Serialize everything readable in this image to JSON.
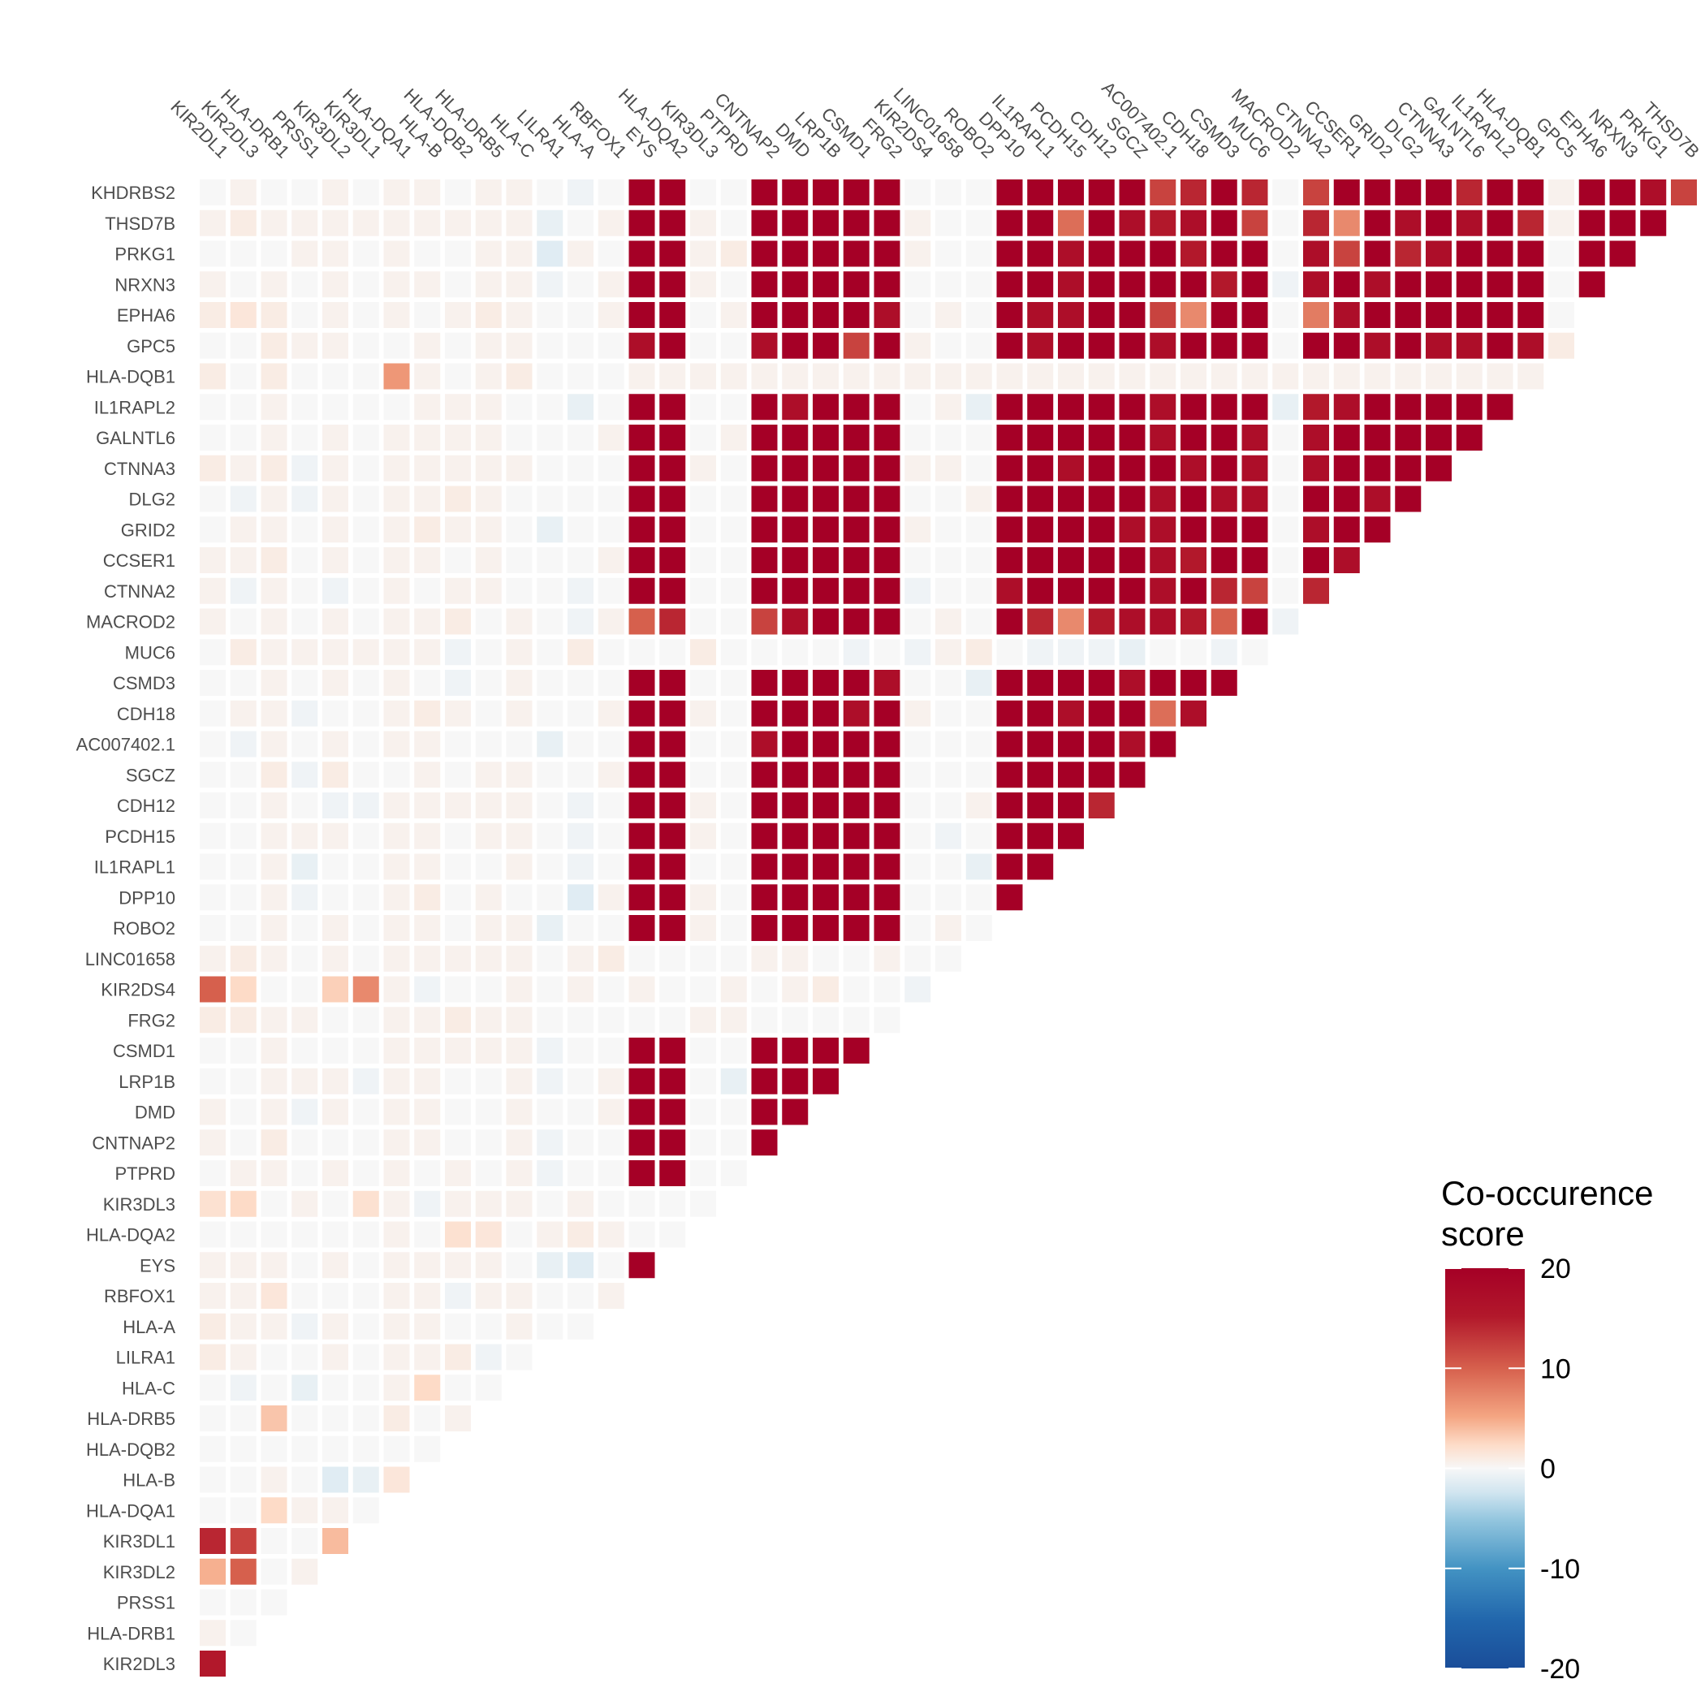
{
  "chart_data": {
    "type": "heatmap",
    "title": "",
    "xlabel": "",
    "ylabel": "",
    "x_labels": [
      "KIR2DL1",
      "KIR2DL3",
      "HLA-DRB1",
      "PRSS1",
      "KIR3DL2",
      "KIR3DL1",
      "HLA-DQA1",
      "HLA-B",
      "HLA-DQB2",
      "HLA-DRB5",
      "HLA-C",
      "LILRA1",
      "HLA-A",
      "RBFOX1",
      "EYS",
      "HLA-DQA2",
      "KIR3DL3",
      "PTPRD",
      "CNTNAP2",
      "DMD",
      "LRP1B",
      "CSMD1",
      "FRG2",
      "KIR2DS4",
      "LINC01658",
      "ROBO2",
      "DPP10",
      "IL1RAPL1",
      "PCDH15",
      "CDH12",
      "SGCZ",
      "AC007402.1",
      "CDH18",
      "CSMD3",
      "MUC6",
      "MACROD2",
      "CTNNA2",
      "CCSER1",
      "GRID2",
      "DLG2",
      "CTNNA3",
      "GALNTL6",
      "IL1RAPL2",
      "HLA-DQB1",
      "GPC5",
      "EPHA6",
      "NRXN3",
      "PRKG1",
      "THSD7B"
    ],
    "y_labels": [
      "KHDRBS2",
      "THSD7B",
      "PRKG1",
      "NRXN3",
      "EPHA6",
      "GPC5",
      "HLA-DQB1",
      "IL1RAPL2",
      "GALNTL6",
      "CTNNA3",
      "DLG2",
      "GRID2",
      "CCSER1",
      "CTNNA2",
      "MACROD2",
      "MUC6",
      "CSMD3",
      "CDH18",
      "AC007402.1",
      "SGCZ",
      "CDH12",
      "PCDH15",
      "IL1RAPL1",
      "DPP10",
      "ROBO2",
      "LINC01658",
      "KIR2DS4",
      "FRG2",
      "CSMD1",
      "LRP1B",
      "DMD",
      "CNTNAP2",
      "PTPRD",
      "KIR3DL3",
      "HLA-DQA2",
      "EYS",
      "RBFOX1",
      "HLA-A",
      "LILRA1",
      "HLA-C",
      "HLA-DRB5",
      "HLA-DQB2",
      "HLA-B",
      "HLA-DQA1",
      "KIR3DL1",
      "KIR3DL2",
      "PRSS1",
      "HLA-DRB1",
      "KIR2DL3"
    ],
    "note_layout": "lower-triangular; row i (from top) has 49 - i cells, cell j corresponds to x_labels[j]",
    "values": [
      [
        0,
        1,
        0,
        0,
        1,
        0,
        1,
        1,
        0,
        1,
        1,
        0,
        -1,
        0,
        25,
        25,
        0,
        0,
        25,
        25,
        25,
        25,
        25,
        0,
        0,
        0,
        25,
        25,
        25,
        25,
        25,
        17,
        19,
        25,
        19,
        0,
        17,
        25,
        25,
        25,
        25,
        19,
        25,
        25,
        1,
        25,
        25,
        22,
        17
      ],
      [
        1,
        2,
        1,
        1,
        1,
        1,
        1,
        1,
        1,
        1,
        1,
        -2,
        0,
        1,
        25,
        25,
        1,
        0,
        25,
        25,
        25,
        25,
        25,
        1,
        0,
        0,
        25,
        25,
        14,
        25,
        22,
        20,
        22,
        25,
        17,
        0,
        19,
        12,
        25,
        22,
        25,
        22,
        25,
        19,
        1,
        25,
        25,
        25
      ],
      [
        0,
        0,
        0,
        1,
        1,
        0,
        1,
        0,
        0,
        1,
        1,
        -3,
        1,
        0,
        25,
        25,
        1,
        2,
        25,
        25,
        25,
        25,
        25,
        1,
        0,
        0,
        25,
        25,
        22,
        25,
        25,
        25,
        20,
        25,
        25,
        0,
        22,
        17,
        25,
        19,
        22,
        25,
        25,
        25,
        0,
        25,
        25
      ],
      [
        1,
        0,
        1,
        0,
        1,
        0,
        1,
        1,
        0,
        1,
        1,
        -1,
        0,
        1,
        25,
        25,
        1,
        0,
        25,
        25,
        25,
        25,
        25,
        0,
        0,
        0,
        25,
        25,
        22,
        25,
        25,
        25,
        25,
        20,
        25,
        -1,
        22,
        25,
        22,
        25,
        25,
        25,
        25,
        25,
        0,
        25
      ],
      [
        2,
        3,
        2,
        0,
        1,
        0,
        1,
        0,
        1,
        2,
        1,
        0,
        0,
        1,
        25,
        25,
        0,
        1,
        25,
        25,
        25,
        25,
        22,
        0,
        1,
        0,
        25,
        22,
        22,
        25,
        25,
        17,
        12,
        25,
        25,
        0,
        13,
        22,
        25,
        25,
        25,
        25,
        25,
        25,
        0
      ],
      [
        0,
        0,
        2,
        1,
        1,
        0,
        0,
        1,
        0,
        1,
        1,
        0,
        0,
        0,
        22,
        25,
        0,
        0,
        22,
        25,
        25,
        17,
        25,
        1,
        0,
        0,
        25,
        22,
        25,
        25,
        25,
        22,
        25,
        25,
        25,
        0,
        25,
        25,
        22,
        25,
        22,
        22,
        25,
        22,
        2
      ],
      [
        2,
        0,
        2,
        0,
        0,
        0,
        11,
        1,
        0,
        1,
        2,
        0,
        0,
        0,
        1,
        1,
        1,
        1,
        1,
        1,
        1,
        1,
        1,
        1,
        1,
        1,
        1,
        1,
        1,
        1,
        1,
        1,
        1,
        1,
        1,
        1,
        1,
        1,
        1,
        1,
        1,
        1,
        1,
        1
      ],
      [
        0,
        0,
        1,
        0,
        0,
        0,
        0,
        1,
        1,
        1,
        0,
        0,
        -2,
        0,
        25,
        25,
        0,
        0,
        25,
        22,
        25,
        25,
        25,
        0,
        1,
        -2,
        25,
        25,
        25,
        25,
        25,
        22,
        25,
        25,
        25,
        -2,
        20,
        22,
        25,
        25,
        25,
        25,
        25
      ],
      [
        0,
        0,
        1,
        0,
        1,
        0,
        1,
        1,
        1,
        1,
        0,
        0,
        0,
        1,
        25,
        25,
        0,
        1,
        25,
        25,
        25,
        25,
        25,
        0,
        0,
        0,
        25,
        25,
        25,
        25,
        25,
        22,
        25,
        25,
        22,
        0,
        22,
        25,
        25,
        25,
        25,
        25
      ],
      [
        2,
        1,
        2,
        -1,
        1,
        0,
        1,
        1,
        1,
        1,
        1,
        0,
        0,
        0,
        25,
        25,
        1,
        0,
        25,
        25,
        25,
        25,
        25,
        1,
        1,
        0,
        25,
        25,
        22,
        25,
        25,
        25,
        22,
        25,
        22,
        0,
        22,
        25,
        25,
        25,
        25
      ],
      [
        0,
        -1,
        1,
        -1,
        1,
        0,
        1,
        1,
        2,
        1,
        0,
        0,
        0,
        0,
        25,
        25,
        0,
        0,
        25,
        25,
        25,
        25,
        25,
        0,
        0,
        1,
        25,
        25,
        25,
        25,
        25,
        22,
        25,
        22,
        22,
        0,
        25,
        25,
        22,
        25
      ],
      [
        0,
        1,
        1,
        0,
        1,
        0,
        1,
        2,
        1,
        1,
        0,
        -2,
        0,
        0,
        25,
        25,
        0,
        0,
        25,
        25,
        25,
        25,
        25,
        1,
        0,
        0,
        25,
        25,
        25,
        25,
        22,
        22,
        25,
        25,
        25,
        0,
        22,
        25,
        25
      ],
      [
        1,
        1,
        2,
        0,
        1,
        0,
        1,
        1,
        0,
        1,
        0,
        0,
        0,
        1,
        25,
        25,
        0,
        0,
        25,
        25,
        25,
        25,
        25,
        0,
        0,
        0,
        25,
        25,
        25,
        25,
        25,
        22,
        20,
        25,
        25,
        0,
        25,
        22
      ],
      [
        1,
        -1,
        1,
        0,
        -1,
        0,
        1,
        0,
        1,
        1,
        0,
        0,
        -1,
        0,
        25,
        25,
        0,
        0,
        25,
        25,
        25,
        25,
        25,
        -1,
        0,
        0,
        22,
        25,
        25,
        25,
        25,
        22,
        25,
        19,
        17,
        0,
        19
      ],
      [
        1,
        0,
        1,
        0,
        1,
        0,
        1,
        1,
        2,
        0,
        1,
        0,
        -1,
        1,
        15,
        19,
        0,
        0,
        17,
        22,
        25,
        25,
        25,
        0,
        1,
        0,
        25,
        19,
        12,
        20,
        22,
        22,
        20,
        15,
        25,
        -1
      ],
      [
        0,
        2,
        1,
        1,
        1,
        1,
        1,
        1,
        -1,
        0,
        1,
        0,
        2,
        0,
        0,
        0,
        2,
        0,
        0,
        0,
        0,
        -1,
        0,
        -1,
        1,
        2,
        0,
        -1,
        -1,
        -1,
        -2,
        0,
        0,
        -1,
        0
      ],
      [
        0,
        0,
        1,
        0,
        1,
        0,
        1,
        0,
        -1,
        0,
        1,
        0,
        0,
        0,
        25,
        25,
        0,
        0,
        25,
        25,
        25,
        25,
        22,
        0,
        0,
        -2,
        25,
        25,
        25,
        25,
        22,
        25,
        25,
        25
      ],
      [
        0,
        1,
        1,
        -1,
        0,
        0,
        1,
        2,
        1,
        0,
        1,
        0,
        0,
        1,
        25,
        25,
        1,
        0,
        25,
        25,
        25,
        22,
        25,
        1,
        0,
        0,
        25,
        25,
        22,
        25,
        25,
        14,
        22
      ],
      [
        0,
        -1,
        1,
        0,
        1,
        0,
        1,
        1,
        0,
        0,
        0,
        -2,
        0,
        0,
        25,
        25,
        0,
        0,
        22,
        25,
        25,
        25,
        25,
        0,
        0,
        0,
        25,
        25,
        25,
        25,
        22,
        25
      ],
      [
        0,
        0,
        2,
        -1,
        2,
        0,
        0,
        1,
        0,
        1,
        1,
        0,
        0,
        1,
        25,
        25,
        0,
        0,
        25,
        25,
        25,
        25,
        25,
        0,
        0,
        0,
        25,
        25,
        25,
        25,
        25
      ],
      [
        0,
        0,
        1,
        0,
        -1,
        -1,
        1,
        1,
        1,
        1,
        1,
        0,
        -1,
        0,
        25,
        25,
        1,
        0,
        25,
        25,
        25,
        25,
        25,
        0,
        0,
        1,
        25,
        25,
        25,
        19
      ],
      [
        0,
        0,
        1,
        1,
        1,
        0,
        1,
        1,
        0,
        1,
        1,
        0,
        -1,
        0,
        25,
        25,
        1,
        0,
        25,
        25,
        25,
        25,
        25,
        0,
        -1,
        0,
        25,
        25,
        25
      ],
      [
        0,
        0,
        1,
        -2,
        0,
        0,
        1,
        1,
        0,
        0,
        1,
        0,
        -1,
        0,
        25,
        25,
        0,
        0,
        25,
        25,
        25,
        25,
        25,
        0,
        0,
        -2,
        25,
        25
      ],
      [
        0,
        0,
        1,
        -1,
        0,
        0,
        1,
        2,
        0,
        1,
        0,
        0,
        -3,
        1,
        25,
        25,
        1,
        0,
        25,
        25,
        25,
        25,
        25,
        0,
        0,
        0,
        25
      ],
      [
        0,
        0,
        1,
        0,
        1,
        0,
        1,
        1,
        0,
        1,
        1,
        -2,
        0,
        0,
        25,
        25,
        1,
        0,
        25,
        25,
        25,
        25,
        25,
        0,
        1,
        0
      ],
      [
        1,
        2,
        1,
        0,
        1,
        0,
        1,
        1,
        1,
        1,
        1,
        0,
        1,
        2,
        0,
        0,
        0,
        0,
        1,
        1,
        0,
        0,
        1,
        0,
        0
      ],
      [
        15,
        5,
        0,
        0,
        6,
        12,
        1,
        -1,
        0,
        0,
        1,
        0,
        1,
        0,
        1,
        0,
        0,
        1,
        0,
        1,
        2,
        0,
        0,
        -1
      ],
      [
        2,
        2,
        1,
        1,
        0,
        0,
        1,
        1,
        2,
        1,
        1,
        0,
        0,
        0,
        0,
        0,
        1,
        1,
        0,
        0,
        0,
        0,
        0
      ],
      [
        0,
        0,
        1,
        0,
        0,
        0,
        1,
        1,
        1,
        1,
        1,
        -1,
        0,
        0,
        25,
        25,
        0,
        0,
        25,
        25,
        25,
        25
      ],
      [
        0,
        0,
        1,
        1,
        1,
        -1,
        1,
        1,
        0,
        0,
        1,
        -1,
        0,
        1,
        25,
        25,
        0,
        -2,
        25,
        25,
        25
      ],
      [
        1,
        0,
        1,
        -1,
        1,
        0,
        1,
        1,
        0,
        0,
        1,
        0,
        0,
        1,
        25,
        25,
        0,
        0,
        25,
        25
      ],
      [
        1,
        0,
        2,
        0,
        0,
        0,
        1,
        1,
        0,
        0,
        1,
        -1,
        0,
        0,
        25,
        25,
        0,
        0,
        25
      ],
      [
        0,
        1,
        1,
        0,
        1,
        0,
        1,
        0,
        1,
        0,
        1,
        -1,
        0,
        0,
        25,
        25,
        0,
        0
      ],
      [
        4,
        5,
        0,
        1,
        0,
        4,
        1,
        -1,
        1,
        1,
        1,
        0,
        1,
        0,
        0,
        0,
        0
      ],
      [
        0,
        0,
        0,
        0,
        0,
        0,
        1,
        0,
        4,
        3,
        0,
        1,
        2,
        1,
        0,
        0
      ],
      [
        1,
        1,
        1,
        0,
        1,
        0,
        1,
        1,
        1,
        1,
        0,
        -2,
        -3,
        0,
        25
      ],
      [
        1,
        1,
        3,
        0,
        0,
        0,
        1,
        1,
        -1,
        1,
        1,
        0,
        0,
        1
      ],
      [
        2,
        1,
        1,
        -1,
        1,
        0,
        1,
        1,
        0,
        0,
        1,
        0,
        0
      ],
      [
        2,
        1,
        0,
        0,
        1,
        0,
        1,
        1,
        2,
        -1,
        0
      ],
      [
        0,
        -1,
        0,
        -2,
        0,
        0,
        1,
        5,
        0,
        0
      ],
      [
        0,
        0,
        7,
        0,
        0,
        0,
        2,
        0,
        1
      ],
      [
        0,
        0,
        0,
        0,
        0,
        0,
        0,
        0
      ],
      [
        0,
        0,
        1,
        0,
        -3,
        -2,
        3
      ],
      [
        0,
        0,
        5,
        1,
        1,
        0
      ],
      [
        19,
        17,
        0,
        0,
        8
      ],
      [
        9,
        15,
        0,
        1
      ],
      [
        0,
        0,
        0
      ],
      [
        1,
        0
      ],
      [
        20
      ]
    ],
    "legend": {
      "title": "Co-occurence\nscore",
      "min": -20,
      "max": 20,
      "ticks": [
        "20",
        "10",
        "0",
        "-10",
        "-20"
      ],
      "tick_values": [
        20,
        10,
        0,
        -10,
        -20
      ],
      "colors_high_to_low": [
        "#a50026",
        "#d6604d",
        "#f4a582",
        "#fddbc7",
        "#f7f7f7",
        "#d1e5f0",
        "#92c5de",
        "#4393c3",
        "#2166ac"
      ]
    },
    "grid": false,
    "legend_position": "bottom-right"
  }
}
